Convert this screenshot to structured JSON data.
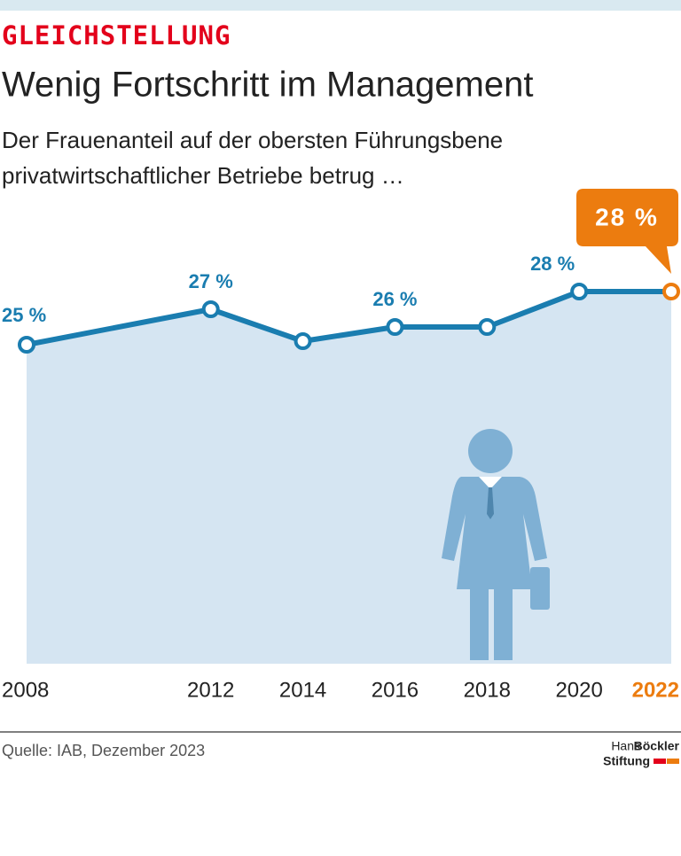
{
  "chart_data": {
    "type": "area",
    "kicker": "GLEICHSTELLUNG",
    "title": "Wenig Fortschritt im Management",
    "subtitle": [
      "Der Frauenanteil auf der obersten Führungsbene",
      "privatwirtschaftlicher Betriebe betrug …"
    ],
    "x": [
      2008,
      2012,
      2014,
      2016,
      2018,
      2020,
      2022
    ],
    "values": [
      25,
      27,
      25.2,
      26,
      26,
      28,
      28
    ],
    "value_labels": [
      "25 %",
      "27 %",
      null,
      "26 %",
      null,
      "28 %",
      "28 %"
    ],
    "color": "#1a7db0",
    "area_color": "#d5e5f2",
    "highlight_color": "#ec7c0f",
    "xlim": [
      2008,
      2022
    ],
    "xticks": [
      2008,
      2012,
      2014,
      2016,
      2018,
      2020,
      2022
    ],
    "ylim": [
      7,
      31
    ],
    "source": "Quelle: IAB, Dezember 2023",
    "logo": {
      "line1": "Hans",
      "line1_bold": "Böckler",
      "line2": "Stiftung"
    }
  }
}
